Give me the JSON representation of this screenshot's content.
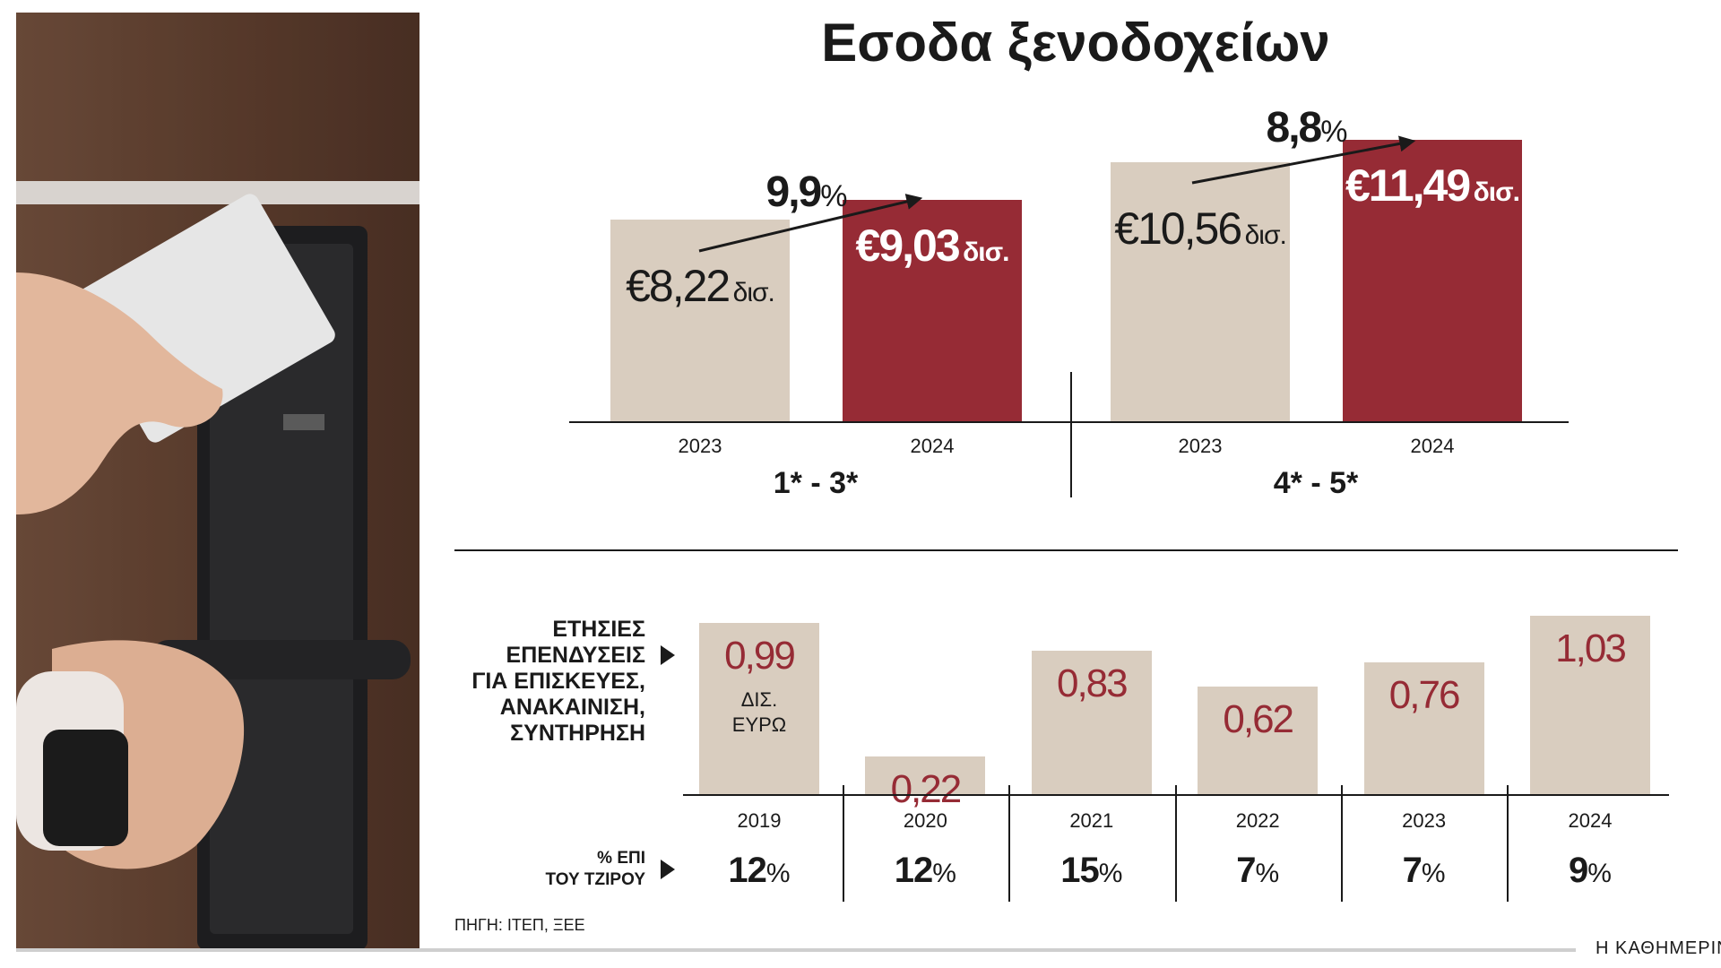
{
  "title": "Εσοδα ξενοδοχείων",
  "colors": {
    "beige": "#d9cdbf",
    "red": "#962b35",
    "dark": "#1a1a1a"
  },
  "chart_data": [
    {
      "type": "bar",
      "title": "Εσοδα ξενοδοχείων",
      "groups": [
        {
          "label": "1* - 3*",
          "growth": {
            "number": "9,9",
            "unit": "%"
          },
          "bars": [
            {
              "year": "2023",
              "value": 8.22,
              "amount": "€8,22",
              "unit": "δισ.",
              "color": "#d9cdbf"
            },
            {
              "year": "2024",
              "value": 9.03,
              "amount": "€9,03",
              "unit": "δισ.",
              "color": "#962b35"
            }
          ]
        },
        {
          "label": "4* - 5*",
          "growth": {
            "number": "8,8",
            "unit": "%"
          },
          "bars": [
            {
              "year": "2023",
              "value": 10.56,
              "amount": "€10,56",
              "unit": "δισ.",
              "color": "#d9cdbf"
            },
            {
              "year": "2024",
              "value": 11.49,
              "amount": "€11,49",
              "unit": "δισ.",
              "color": "#962b35"
            }
          ]
        }
      ]
    },
    {
      "type": "bar",
      "row_label": "ΕΤΗΣΙΕΣ\nΕΠΕΝΔΥΣΕΙΣ\nΓΙΑ ΕΠΙΣΚΕΥΕΣ,\nΑΝΑΚΑΙΝΙΣΗ,\nΣΥΝΤΗΡΗΣΗ",
      "unit_label": "ΔΙΣ.\nΕΥΡΩ",
      "categories": [
        "2019",
        "2020",
        "2021",
        "2022",
        "2023",
        "2024"
      ],
      "values": [
        0.99,
        0.22,
        0.83,
        0.62,
        0.76,
        1.03
      ],
      "value_labels": [
        "0,99",
        "0,22",
        "0,83",
        "0,62",
        "0,76",
        "1,03"
      ],
      "secondary_label": "% ΕΠΙ\nΤΟΥ ΤΖΙΡΟΥ",
      "secondary_values": [
        12,
        12,
        15,
        7,
        7,
        9
      ],
      "secondary_unit": "%"
    }
  ],
  "source": "ΠΗΓΗ: ΙΤΕΠ, ΞΕΕ",
  "brand": "Η ΚΑΘΗΜΕΡΙΝΗ"
}
